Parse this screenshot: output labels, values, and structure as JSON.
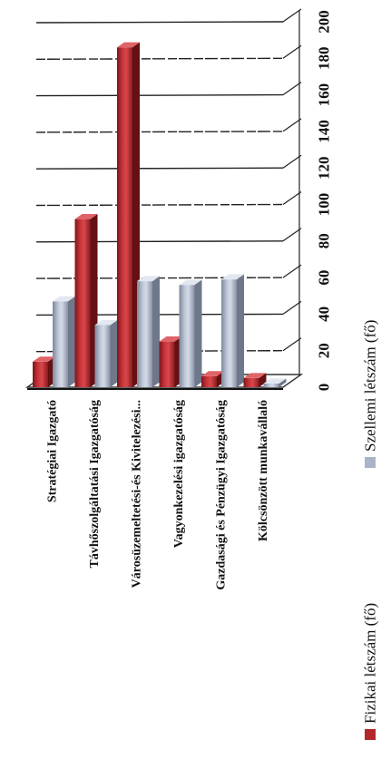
{
  "chart_data": {
    "type": "bar",
    "orientation": "horizontal-3d",
    "categories": [
      "Stratégiai Igazgató",
      "Távhőszolgáltatási Igazgatóság",
      "Városüzemeltetési-és Kivitelezési...",
      "Vagyonkezelési igazgatóság",
      "Gazdasági és Pénzügyi Igazgatóság",
      "Kölcsönzött munkavállaló"
    ],
    "series": [
      {
        "name": "Fizikai létszám (fő)",
        "color": "#b3262a",
        "values": [
          14,
          92,
          186,
          25,
          6,
          5
        ]
      },
      {
        "name": "Szellemi létszám (fő)",
        "color": "#aab4c8",
        "values": [
          47,
          34,
          58,
          56,
          59,
          2
        ]
      }
    ],
    "value_axis": {
      "min": 0,
      "max": 200,
      "step": 20,
      "tick_labels": [
        "0",
        "20",
        "40",
        "60",
        "80",
        "100",
        "120",
        "140",
        "160",
        "180",
        "200"
      ]
    },
    "grid": true,
    "legend": "bottom"
  }
}
